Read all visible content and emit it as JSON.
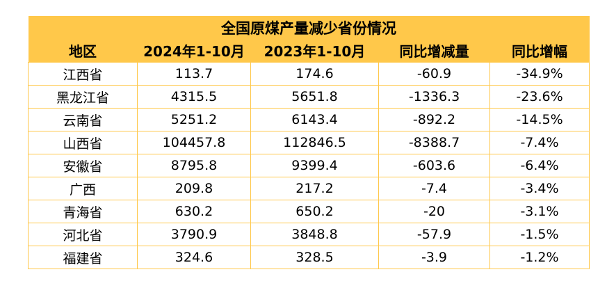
{
  "table": {
    "title": "全国原煤产量减少省份情况",
    "headers": [
      "地区",
      "2024年1-10月",
      "2023年1-10月",
      "同比增减量",
      "同比增幅"
    ],
    "rows": [
      [
        "江西省",
        "113.7",
        "174.6",
        "-60.9",
        "-34.9%"
      ],
      [
        "黑龙江省",
        "4315.5",
        "5651.8",
        "-1336.3",
        "-23.6%"
      ],
      [
        "云南省",
        "5251.2",
        "6143.4",
        "-892.2",
        "-14.5%"
      ],
      [
        "山西省",
        "104457.8",
        "112846.5",
        "-8388.7",
        "-7.4%"
      ],
      [
        "安徽省",
        "8795.8",
        "9399.4",
        "-603.6",
        "-6.4%"
      ],
      [
        "广西",
        "209.8",
        "217.2",
        "-7.4",
        "-3.4%"
      ],
      [
        "青海省",
        "630.2",
        "650.2",
        "-20",
        "-3.1%"
      ],
      [
        "河北省",
        "3790.9",
        "3848.8",
        "-57.9",
        "-1.5%"
      ],
      [
        "福建省",
        "324.6",
        "328.5",
        "-3.9",
        "-1.2%"
      ]
    ],
    "colors": {
      "header_bg": "#FFC84A",
      "border": "#FFC84A"
    }
  }
}
